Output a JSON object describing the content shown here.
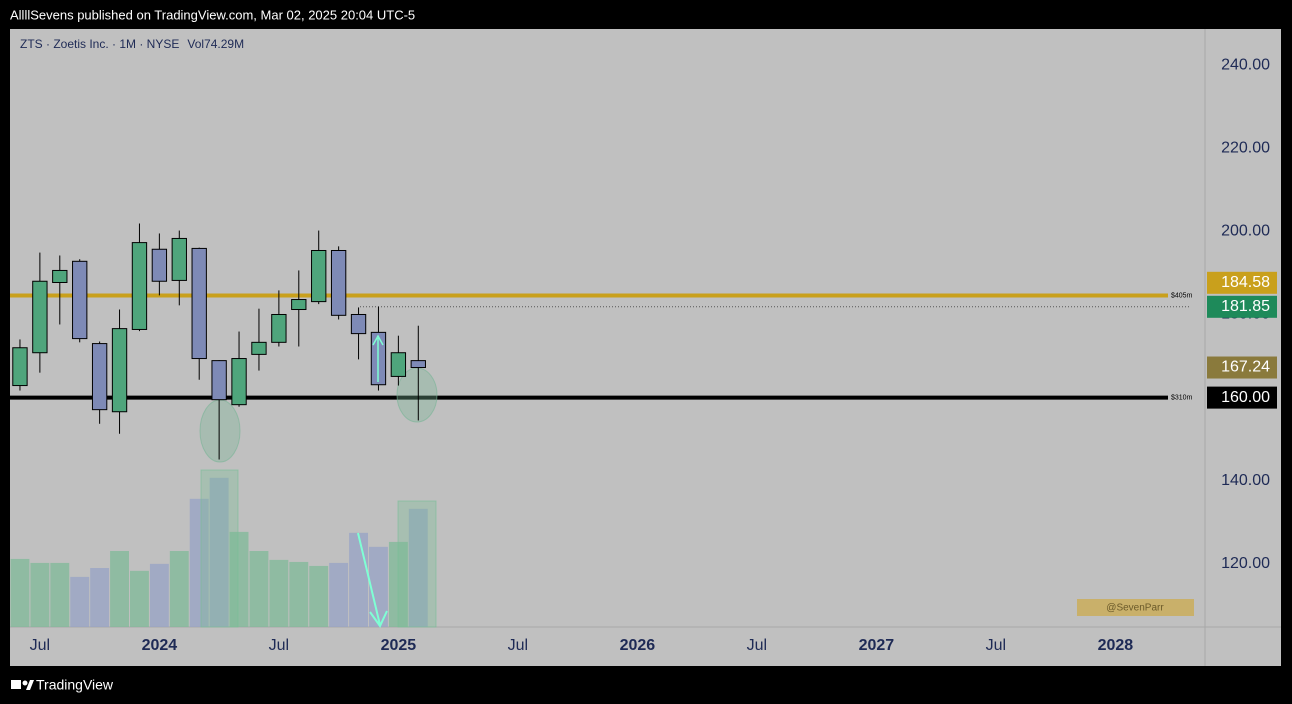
{
  "header": {
    "publisher": "AllllSevens published on TradingView.com, Mar 02, 2025 20:04 UTC-5"
  },
  "footer": {
    "brand": "TradingView"
  },
  "chart_data": {
    "type": "candlestick",
    "legend": "ZTS · Zoetis Inc. · 1M · NYSE",
    "volume_label": "Vol74.29M",
    "watermark": "@SevenParr",
    "x": [
      "2023-06",
      "2023-07",
      "2023-08",
      "2023-09",
      "2023-10",
      "2023-11",
      "2023-12",
      "2024-01",
      "2024-02",
      "2024-03",
      "2024-04",
      "2024-05",
      "2024-06",
      "2024-07",
      "2024-08",
      "2024-09",
      "2024-10",
      "2024-11",
      "2024-12",
      "2025-01",
      "2025-02"
    ],
    "open": [
      162.9,
      170.8,
      187.7,
      192.8,
      173.0,
      156.6,
      176.4,
      195.7,
      188.2,
      195.9,
      168.9,
      158.3,
      170.4,
      173.3,
      181.2,
      183.1,
      195.4,
      180.0,
      175.7,
      165.1,
      168.9
    ],
    "high": [
      174.0,
      194.9,
      194.2,
      193.3,
      173.5,
      181.2,
      201.9,
      199.5,
      200.2,
      196.1,
      169.0,
      175.9,
      181.4,
      185.8,
      190.6,
      200.2,
      196.4,
      181.7,
      181.9,
      174.9,
      177.3
    ],
    "low": [
      161.7,
      166.0,
      177.6,
      173.3,
      153.7,
      151.3,
      176.0,
      184.6,
      182.2,
      164.3,
      145.1,
      157.8,
      166.5,
      172.3,
      172.3,
      182.5,
      178.8,
      169.2,
      161.7,
      162.9,
      154.5
    ],
    "close": [
      172.0,
      188.0,
      190.6,
      174.2,
      157.1,
      176.6,
      197.3,
      188.0,
      198.3,
      169.4,
      159.5,
      169.4,
      173.3,
      180.0,
      183.6,
      195.4,
      179.8,
      175.4,
      163.1,
      170.8,
      167.24
    ],
    "volume": [
      42.8,
      40.3,
      40.3,
      31.5,
      37.1,
      47.8,
      35.3,
      39.7,
      47.8,
      80.6,
      93.8,
      59.8,
      47.8,
      42.2,
      40.9,
      38.4,
      40.3,
      59.2,
      50.4,
      53.5,
      74.29
    ],
    "up_color": "#4fa57c",
    "down_color": "#7e8ab6",
    "volume_up_color": "#7fba98",
    "volume_down_color": "#97a3c6",
    "xlim": [
      "2023-06",
      "2028-05"
    ],
    "xticks": [
      {
        "value": "2023-07",
        "label": "Jul"
      },
      {
        "value": "2024-01",
        "label": "2024"
      },
      {
        "value": "2024-07",
        "label": "Jul"
      },
      {
        "value": "2025-01",
        "label": "2025"
      },
      {
        "value": "2025-07",
        "label": "Jul"
      },
      {
        "value": "2026-01",
        "label": "2026"
      },
      {
        "value": "2026-07",
        "label": "Jul"
      },
      {
        "value": "2027-01",
        "label": "2027"
      },
      {
        "value": "2027-07",
        "label": "Jul"
      },
      {
        "value": "2028-01",
        "label": "2028"
      }
    ],
    "ylim": [
      104.8,
      248.7
    ],
    "volume_ylim": [
      0,
      376
    ],
    "yticks": [
      {
        "value": 120,
        "label": "120.00"
      },
      {
        "value": 140,
        "label": "140.00"
      },
      {
        "value": 160,
        "label": "160.00"
      },
      {
        "value": 180,
        "label": "180.00"
      },
      {
        "value": 200,
        "label": "200.00"
      },
      {
        "value": 220,
        "label": "220.00"
      },
      {
        "value": 240,
        "label": "240.00"
      }
    ],
    "price_lines": [
      {
        "value": 181.85,
        "label": "181.85",
        "color": "#1e8a5a",
        "style": "dotted"
      },
      {
        "value": 184.58,
        "label": "184.58",
        "color": "#c9a01c",
        "style": "solid",
        "tag": "$405m"
      },
      {
        "value": 167.24,
        "label": "167.24",
        "color": "#8a7a3c",
        "style": "none"
      },
      {
        "value": 160,
        "label": "160.00",
        "color": "#000000",
        "style": "solid",
        "tag": "$310m"
      }
    ]
  }
}
